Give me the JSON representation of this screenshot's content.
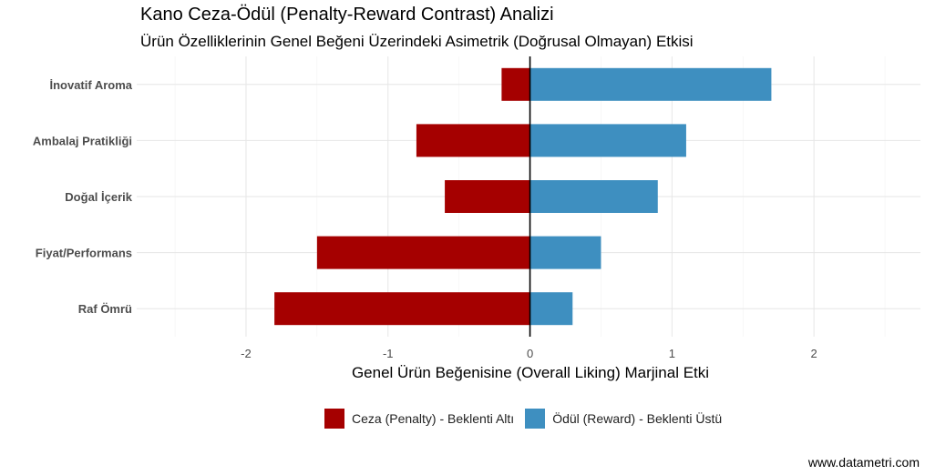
{
  "title": "Kano Ceza-Ödül (Penalty-Reward Contrast) Analizi",
  "subtitle": "Ürün Özelliklerinin Genel Beğeni Üzerindeki Asimetrik (Doğrusal Olmayan) Etkisi",
  "caption": "www.datametri.com",
  "chart_data": {
    "type": "bar",
    "orientation": "horizontal",
    "stacked": "diverging",
    "categories": [
      "İnovatif Aroma",
      "Ambalaj Pratikliği",
      "Doğal İçerik",
      "Fiyat/Performans",
      "Raf Ömrü"
    ],
    "series": [
      {
        "name": "Ceza (Penalty) - Beklenti Altı",
        "color": "#A50000",
        "values": [
          -0.2,
          -0.8,
          -0.6,
          -1.5,
          -1.8
        ]
      },
      {
        "name": "Ödül (Reward) - Beklenti Üstü",
        "color": "#3E8FC0",
        "values": [
          1.7,
          1.1,
          0.9,
          0.5,
          0.3
        ]
      }
    ],
    "xlabel": "Genel Ürün Beğenisine (Overall Liking) Marjinal Etki",
    "ylabel": "",
    "xlim": [
      -2.77,
      2.75
    ],
    "xticks": [
      -2,
      -1,
      0,
      1,
      2
    ],
    "xtick_labels": [
      "-2",
      "-1",
      "0",
      "1",
      "2"
    ],
    "grid": true,
    "legend_position": "bottom"
  }
}
